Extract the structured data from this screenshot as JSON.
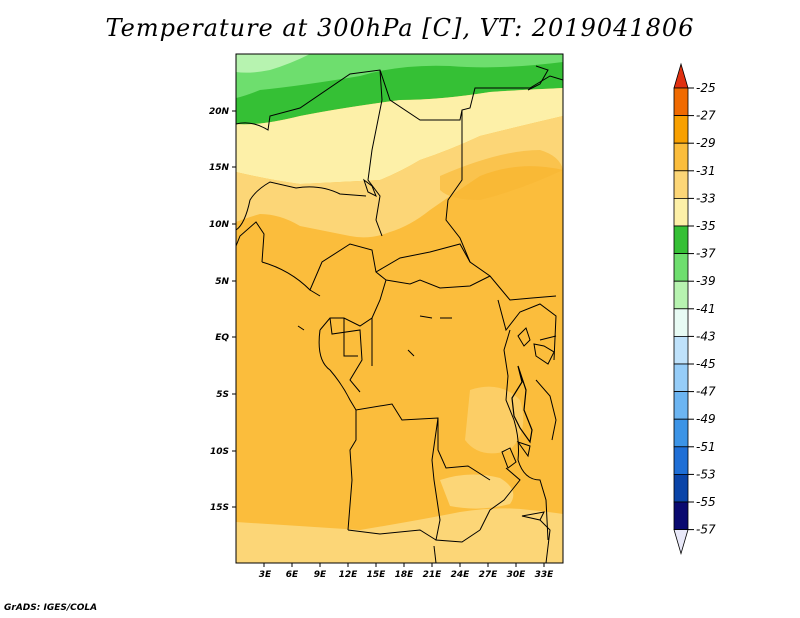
{
  "title": "Temperature at 300hPa [C], VT: 2019041806",
  "footer": "GrADS: IGES/COLA",
  "map": {
    "lat_labels": [
      "20N",
      "15N",
      "10N",
      "5N",
      "EQ",
      "5S",
      "10S",
      "15S"
    ],
    "lon_labels": [
      "3E",
      "6E",
      "9E",
      "12E",
      "15E",
      "18E",
      "21E",
      "24E",
      "27E",
      "30E",
      "33E"
    ]
  },
  "colorbar": {
    "labels": [
      "-25",
      "-27",
      "-29",
      "-31",
      "-33",
      "-35",
      "-37",
      "-39",
      "-41",
      "-43",
      "-45",
      "-47",
      "-49",
      "-51",
      "-53",
      "-55",
      "-57"
    ],
    "colors": [
      "#e63c00",
      "#f06a00",
      "#f8a000",
      "#fbbd3c",
      "#fcd677",
      "#fdf0a8",
      "#35c035",
      "#6ede6e",
      "#b7f3b0",
      "#e8fbf4",
      "#bfe2fb",
      "#96cdf8",
      "#6cb5f2",
      "#3c94e6",
      "#1f6fd6",
      "#0a44a8",
      "#0a0a70"
    ],
    "top_color": "#e03010",
    "bottom_color": "#e8e8f8"
  }
}
